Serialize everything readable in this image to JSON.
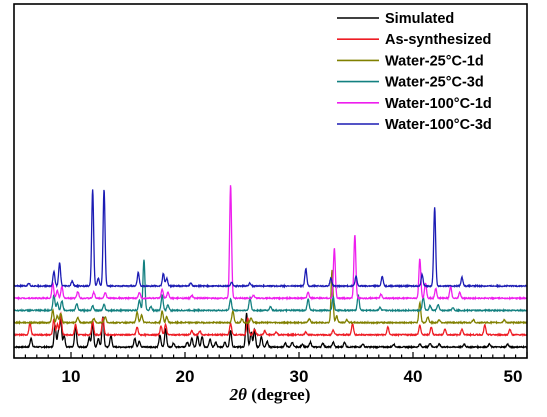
{
  "chart_data": {
    "type": "line",
    "title": "",
    "xlabel": "2θ (degree)",
    "xlabel_parts": {
      "theta": "2θ",
      "unit": " (degree)"
    },
    "ylabel": "",
    "xlim": [
      5,
      50
    ],
    "xticks": [
      10,
      20,
      30,
      40,
      50
    ],
    "y_axis_values_shown": false,
    "grid": false,
    "legend_position": "top-right",
    "series": [
      {
        "name": "Simulated",
        "color": "#000000",
        "baseline": 0,
        "peaks": [
          [
            6.5,
            0.9
          ],
          [
            8.6,
            2.3
          ],
          [
            8.9,
            1.6
          ],
          [
            9.1,
            2.8
          ],
          [
            9.4,
            1.2
          ],
          [
            10.4,
            2.2
          ],
          [
            11.6,
            1.0
          ],
          [
            11.9,
            2.5
          ],
          [
            12.4,
            0.9
          ],
          [
            12.8,
            3.2
          ],
          [
            13.5,
            1.2
          ],
          [
            15.6,
            0.9
          ],
          [
            16.0,
            0.6
          ],
          [
            17.8,
            1.2
          ],
          [
            18.3,
            1.9
          ],
          [
            19.0,
            0.4
          ],
          [
            20.2,
            0.5
          ],
          [
            20.6,
            0.9
          ],
          [
            21.1,
            1.2
          ],
          [
            21.5,
            1.1
          ],
          [
            22.2,
            0.8
          ],
          [
            22.7,
            0.5
          ],
          [
            23.5,
            0.5
          ],
          [
            24.0,
            1.7
          ],
          [
            25.4,
            3.5
          ],
          [
            25.8,
            1.5
          ],
          [
            26.1,
            1.8
          ],
          [
            26.7,
            1.1
          ],
          [
            27.2,
            0.6
          ],
          [
            28.8,
            0.4
          ],
          [
            29.4,
            0.5
          ],
          [
            30.3,
            0.3
          ],
          [
            31.0,
            0.5
          ],
          [
            32.1,
            0.4
          ],
          [
            33.0,
            0.5
          ],
          [
            34.0,
            0.5
          ],
          [
            35.6,
            0.3
          ],
          [
            38.3,
            0.3
          ],
          [
            40.6,
            0.3
          ],
          [
            41.5,
            0.4
          ],
          [
            42.3,
            0.3
          ],
          [
            44.5,
            0.3
          ],
          [
            46.7,
            0.3
          ],
          [
            48.3,
            0.3
          ]
        ]
      },
      {
        "name": "As-synthesized",
        "color": "#ee1c24",
        "baseline": 1,
        "peaks": [
          [
            6.4,
            1.2
          ],
          [
            8.5,
            1.6
          ],
          [
            8.8,
            1.1
          ],
          [
            9.1,
            2.2
          ],
          [
            10.4,
            1.1
          ],
          [
            11.9,
            1.5
          ],
          [
            12.8,
            1.8
          ],
          [
            15.8,
            0.8
          ],
          [
            17.9,
            0.9
          ],
          [
            18.3,
            1.1
          ],
          [
            20.6,
            0.4
          ],
          [
            21.3,
            0.4
          ],
          [
            24.0,
            1.2
          ],
          [
            25.5,
            1.8
          ],
          [
            26.1,
            0.6
          ],
          [
            27.0,
            0.4
          ],
          [
            28.0,
            0.3
          ],
          [
            30.6,
            0.3
          ],
          [
            33.0,
            0.5
          ],
          [
            34.7,
            1.2
          ],
          [
            37.8,
            0.8
          ],
          [
            40.6,
            1.0
          ],
          [
            41.6,
            0.8
          ],
          [
            42.8,
            0.6
          ],
          [
            44.3,
            0.6
          ],
          [
            46.3,
            1.0
          ],
          [
            48.5,
            0.6
          ]
        ]
      },
      {
        "name": "Water-25°C-1d",
        "color": "#808000",
        "baseline": 2,
        "peaks": [
          [
            8.4,
            1.3
          ],
          [
            8.8,
            0.7
          ],
          [
            9.1,
            1.0
          ],
          [
            10.6,
            0.5
          ],
          [
            12.0,
            0.4
          ],
          [
            13.0,
            0.6
          ],
          [
            15.8,
            1.1
          ],
          [
            16.2,
            0.8
          ],
          [
            18.0,
            1.2
          ],
          [
            18.4,
            0.6
          ],
          [
            24.2,
            1.2
          ],
          [
            25.0,
            0.4
          ],
          [
            25.8,
            0.5
          ],
          [
            30.9,
            0.4
          ],
          [
            32.9,
            5.5
          ],
          [
            33.3,
            0.7
          ],
          [
            34.2,
            0.3
          ],
          [
            40.6,
            2.1
          ],
          [
            41.3,
            0.6
          ],
          [
            42.3,
            0.3
          ],
          [
            45.3,
            0.3
          ],
          [
            48.0,
            0.3
          ]
        ]
      },
      {
        "name": "Water-25°C-3d",
        "color": "#138080",
        "baseline": 3,
        "peaks": [
          [
            8.5,
            1.6
          ],
          [
            8.8,
            0.8
          ],
          [
            9.2,
            1.0
          ],
          [
            10.5,
            0.7
          ],
          [
            11.9,
            0.5
          ],
          [
            12.9,
            0.6
          ],
          [
            16.0,
            1.1
          ],
          [
            16.4,
            5.3
          ],
          [
            17.0,
            0.4
          ],
          [
            18.0,
            1.6
          ],
          [
            18.5,
            0.6
          ],
          [
            24.0,
            1.2
          ],
          [
            25.7,
            1.3
          ],
          [
            27.5,
            0.4
          ],
          [
            30.8,
            1.2
          ],
          [
            33.0,
            1.4
          ],
          [
            35.2,
            1.6
          ],
          [
            37.1,
            0.3
          ],
          [
            40.9,
            1.4
          ],
          [
            41.5,
            0.5
          ],
          [
            42.2,
            0.6
          ],
          [
            43.5,
            0.3
          ]
        ]
      },
      {
        "name": "Water-100°C-1d",
        "color": "#ee1eee",
        "baseline": 4,
        "peaks": [
          [
            8.4,
            1.6
          ],
          [
            8.8,
            0.8
          ],
          [
            9.2,
            1.2
          ],
          [
            10.6,
            0.7
          ],
          [
            12.0,
            0.6
          ],
          [
            13.0,
            0.6
          ],
          [
            16.0,
            0.6
          ],
          [
            18.0,
            0.9
          ],
          [
            18.5,
            0.6
          ],
          [
            20.6,
            0.3
          ],
          [
            24.0,
            11.8
          ],
          [
            26.0,
            0.3
          ],
          [
            30.8,
            0.6
          ],
          [
            33.1,
            5.2
          ],
          [
            34.9,
            6.6
          ],
          [
            37.2,
            0.4
          ],
          [
            40.6,
            4.1
          ],
          [
            41.1,
            1.6
          ],
          [
            42.0,
            1.0
          ],
          [
            43.3,
            1.2
          ],
          [
            44.1,
            0.6
          ]
        ]
      },
      {
        "name": "Water-100°C-3d",
        "color": "#1c1cb4",
        "baseline": 5,
        "peaks": [
          [
            6.3,
            0.3
          ],
          [
            8.5,
            1.5
          ],
          [
            9.0,
            2.4
          ],
          [
            10.1,
            0.5
          ],
          [
            11.9,
            10.1
          ],
          [
            12.4,
            0.8
          ],
          [
            12.9,
            10.1
          ],
          [
            15.9,
            1.4
          ],
          [
            18.1,
            1.3
          ],
          [
            18.4,
            0.8
          ],
          [
            20.5,
            0.3
          ],
          [
            24.1,
            0.4
          ],
          [
            25.7,
            0.3
          ],
          [
            30.6,
            1.8
          ],
          [
            32.8,
            0.8
          ],
          [
            35.0,
            1.0
          ],
          [
            37.3,
            1.0
          ],
          [
            40.8,
            1.2
          ],
          [
            41.9,
            8.2
          ],
          [
            44.3,
            0.9
          ]
        ]
      }
    ]
  }
}
